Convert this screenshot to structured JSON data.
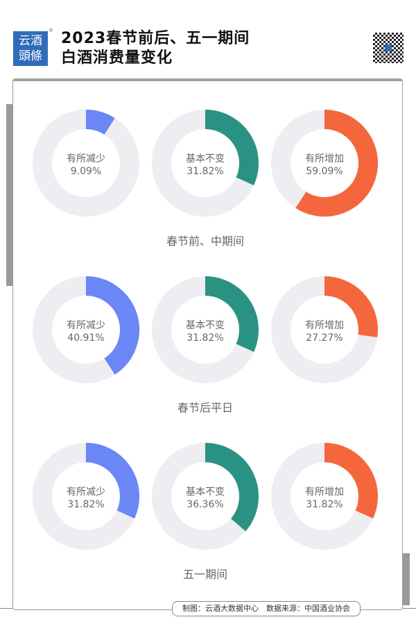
{
  "header": {
    "logo_text": [
      "云酒",
      "頭條"
    ],
    "title_line1": "2023春节前后、五一期间",
    "title_line2": "白酒消费量变化",
    "qr_icon": "qr-code-icon"
  },
  "footer": {
    "text": "制图：云酒大数据中心　数据来源：中国酒业协会"
  },
  "colors": {
    "decrease": "#6b86f5",
    "same": "#2a9282",
    "increase": "#f4663b",
    "track": "#ededf2"
  },
  "chart_data": {
    "type": "donut",
    "categories": [
      "有所减少",
      "基本不变",
      "有所增加"
    ],
    "groups": [
      {
        "label": "春节前、中期间",
        "values": [
          9.09,
          31.82,
          59.09
        ],
        "labels": [
          "9.09%",
          "31.82%",
          "59.09%"
        ]
      },
      {
        "label": "春节后平日",
        "values": [
          40.91,
          31.82,
          27.27
        ],
        "labels": [
          "40.91%",
          "31.82%",
          "27.27%"
        ]
      },
      {
        "label": "五一期间",
        "values": [
          31.82,
          36.36,
          31.82
        ],
        "labels": [
          "31.82%",
          "36.36%",
          "31.82%"
        ]
      }
    ]
  }
}
